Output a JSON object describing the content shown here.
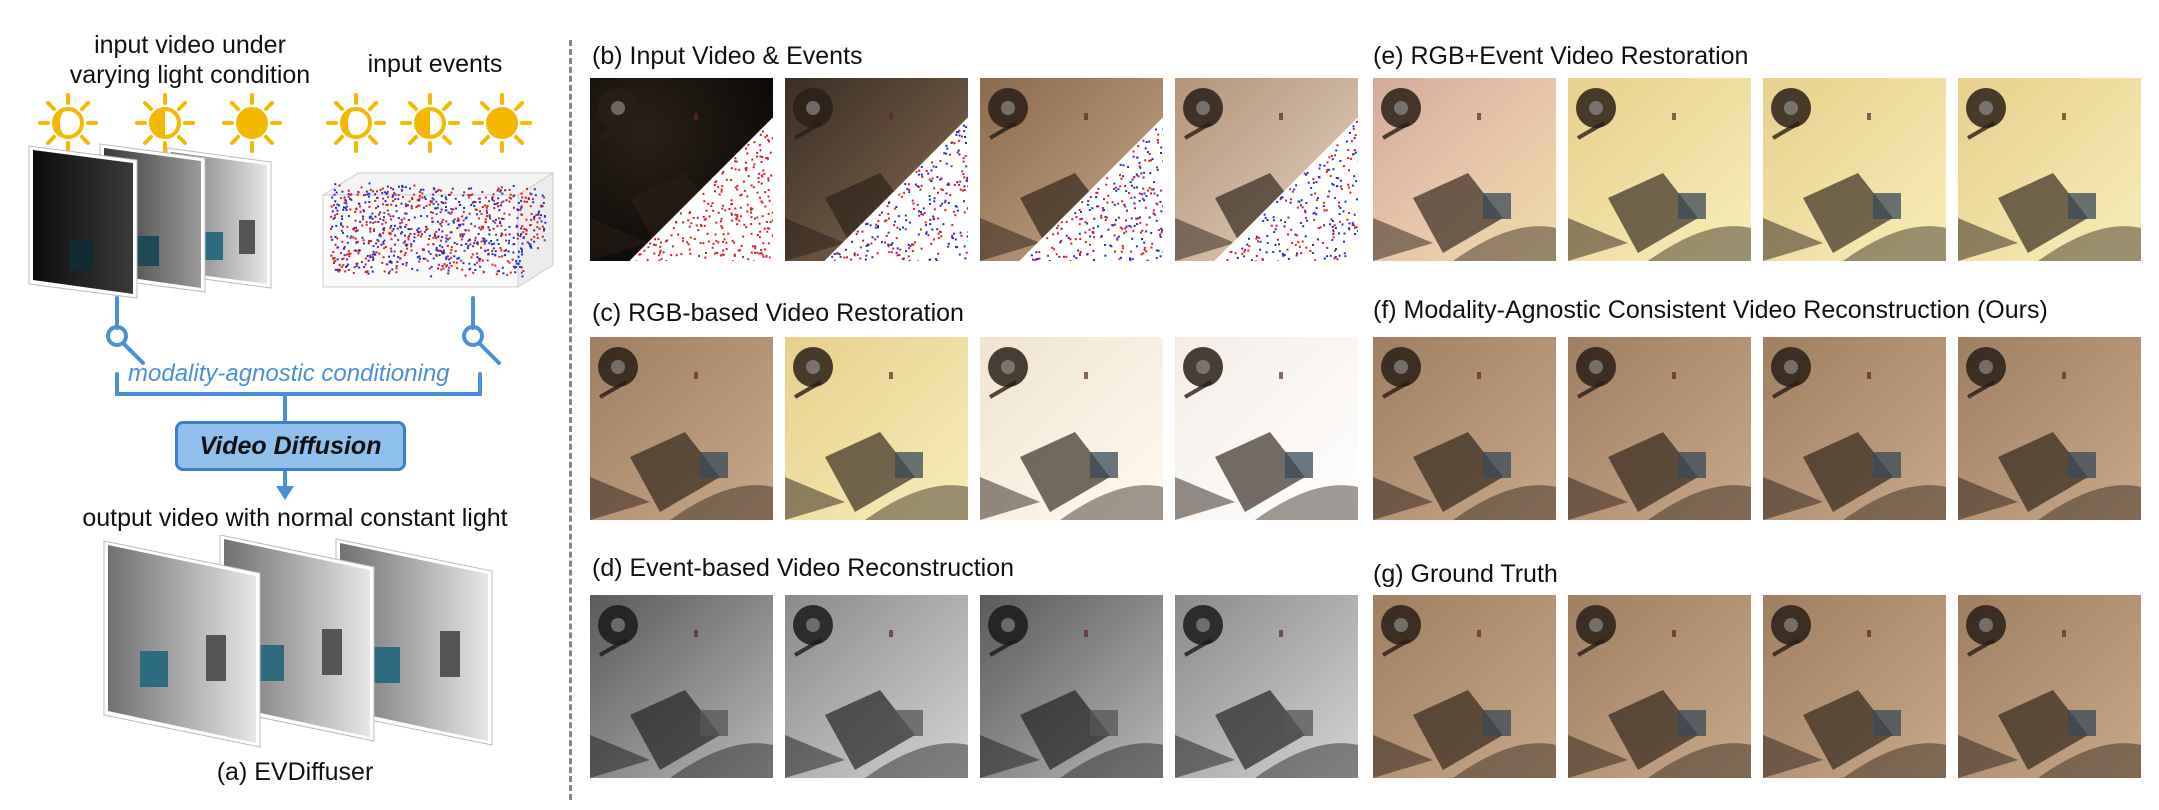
{
  "panel_a": {
    "input_video_label_line1": "input video under",
    "input_video_label_line2": "varying light condition",
    "input_events_label": "input events",
    "conditioning_label": "modality-agnostic conditioning",
    "diffusion_box_label": "Video Diffusion",
    "output_label": "output video with normal constant light",
    "caption": "(a) EVDiffuser"
  },
  "panels": {
    "b": "(b) Input Video & Events",
    "c": "(c) RGB-based Video Restoration",
    "d": "(d) Event-based Video Reconstruction",
    "e": "(e) RGB+Event Video Restoration",
    "f": "(f) Modality-Agnostic Consistent Video Reconstruction (Ours)",
    "g": "(g) Ground Truth"
  },
  "icons": [
    "sun-crescent-icon",
    "sun-half-icon",
    "sun-full-icon",
    "magnet-connector-icon"
  ],
  "colors": {
    "accent_blue": "#4a90d6",
    "sun_yellow": "#f5b800",
    "event_red": "#d42020",
    "event_blue": "#2030d0"
  }
}
